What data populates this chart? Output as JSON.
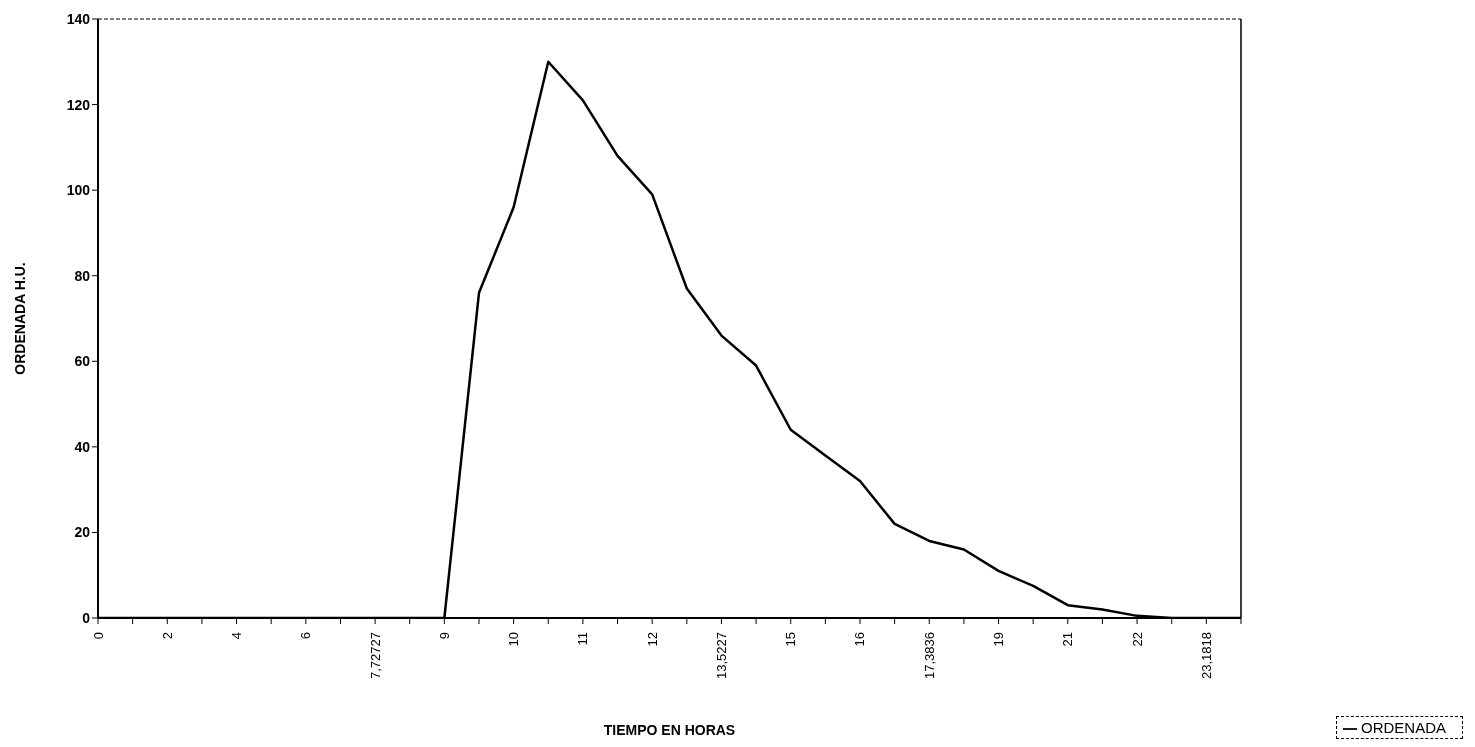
{
  "chart_data": {
    "type": "line",
    "xlabel": "TIEMPO EN HORAS",
    "ylabel": "ORDENADA H.U.",
    "categories": [
      "0",
      null,
      "2",
      null,
      "4",
      null,
      "6",
      null,
      "7,72727",
      null,
      "9",
      null,
      "10",
      null,
      "11",
      null,
      "12",
      null,
      "13,5227",
      null,
      "15",
      null,
      "16",
      null,
      "17,3836",
      null,
      "19",
      null,
      "21",
      null,
      "22",
      null,
      "23,1818",
      null
    ],
    "series": [
      {
        "name": "ORDENADA",
        "color": "#000000",
        "values": [
          0,
          0,
          0,
          0,
          0,
          0,
          0,
          0,
          0,
          0,
          0,
          76,
          96,
          130,
          121,
          108,
          99,
          77,
          66,
          59,
          44,
          38,
          32,
          22,
          18,
          16,
          11,
          7.5,
          3,
          2,
          0.5,
          0,
          0,
          0
        ]
      }
    ],
    "ylim": [
      0,
      140
    ],
    "yticks": [
      0,
      20,
      40,
      60,
      80,
      100,
      120,
      140
    ],
    "legend": "bottom right",
    "marker": "none",
    "line_style": "solid"
  }
}
